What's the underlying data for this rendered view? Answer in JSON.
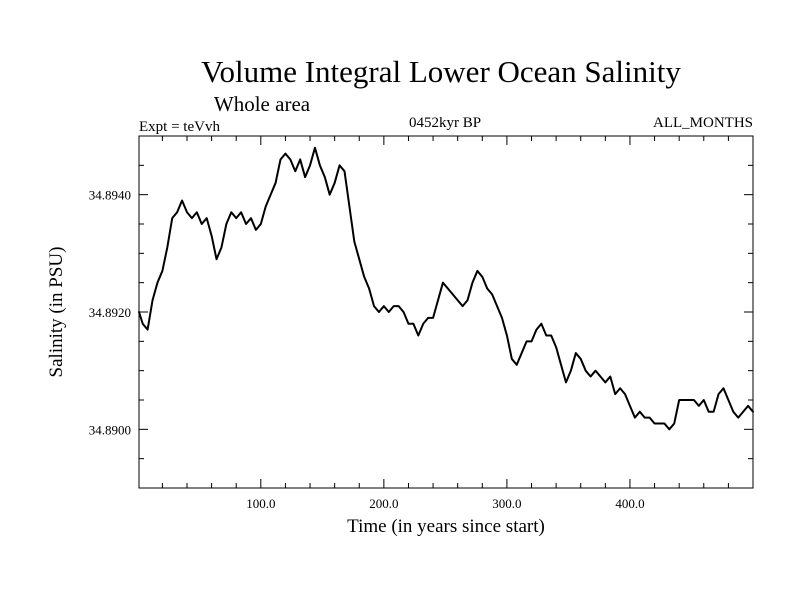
{
  "chart_data": {
    "type": "line",
    "title": "Volume Integral Lower Ocean Salinity",
    "subtitle": "Whole area",
    "experiment_label": "Expt = teVvh",
    "period_label": "0452kyr BP",
    "months_label": "ALL_MONTHS",
    "xlabel": "Time (in years since start)",
    "ylabel": "Salinity (in PSU)",
    "xlim": [
      1,
      500
    ],
    "ylim": [
      34.889,
      34.895
    ],
    "x_major_ticks": [
      100,
      200,
      300,
      400
    ],
    "x_tick_labels": [
      "100.0",
      "200.0",
      "300.0",
      "400.0"
    ],
    "x_minor_step": 20,
    "y_major_ticks": [
      34.89,
      34.892,
      34.894
    ],
    "y_tick_labels": [
      "34.8900",
      "34.8920",
      "34.8940"
    ],
    "y_minor_step": 0.0005,
    "grid": false,
    "series": [
      {
        "x": [
          1,
          4,
          8,
          12,
          16,
          20,
          24,
          28,
          32,
          36,
          40,
          44,
          48,
          52,
          56,
          60,
          64,
          68,
          72,
          76,
          80,
          84,
          88,
          92,
          96,
          100,
          104,
          108,
          112,
          116,
          120,
          124,
          128,
          132,
          136,
          140,
          144,
          148,
          152,
          156,
          160,
          164,
          168,
          172,
          176,
          180,
          184,
          188,
          192,
          196,
          200,
          204,
          208,
          212,
          216,
          220,
          224,
          228,
          232,
          236,
          240,
          244,
          248,
          252,
          256,
          260,
          264,
          268,
          272,
          276,
          280,
          284,
          288,
          292,
          296,
          300,
          304,
          308,
          312,
          316,
          320,
          324,
          328,
          332,
          336,
          340,
          344,
          348,
          352,
          356,
          360,
          364,
          368,
          372,
          376,
          380,
          384,
          388,
          392,
          396,
          400,
          404,
          408,
          412,
          416,
          420,
          424,
          428,
          432,
          436,
          440,
          444,
          448,
          452,
          456,
          460,
          464,
          468,
          472,
          476,
          480,
          484,
          488,
          492,
          496,
          500
        ],
        "values": [
          34.892,
          34.8918,
          34.8917,
          34.8922,
          34.8925,
          34.8927,
          34.8931,
          34.8936,
          34.8937,
          34.8939,
          34.8937,
          34.8936,
          34.8937,
          34.8935,
          34.8936,
          34.8933,
          34.8929,
          34.8931,
          34.8935,
          34.8937,
          34.8936,
          34.8937,
          34.8935,
          34.8936,
          34.8934,
          34.8935,
          34.8938,
          34.894,
          34.8942,
          34.8946,
          34.8947,
          34.8946,
          34.8944,
          34.8946,
          34.8943,
          34.8945,
          34.8948,
          34.8945,
          34.8943,
          34.894,
          34.8942,
          34.8945,
          34.8944,
          34.8938,
          34.8932,
          34.8929,
          34.8926,
          34.8924,
          34.8921,
          34.892,
          34.8921,
          34.892,
          34.8921,
          34.8921,
          34.892,
          34.8918,
          34.8918,
          34.8916,
          34.8918,
          34.8919,
          34.8919,
          34.8922,
          34.8925,
          34.8924,
          34.8923,
          34.8922,
          34.8921,
          34.8922,
          34.8925,
          34.8927,
          34.8926,
          34.8924,
          34.8923,
          34.8921,
          34.8919,
          34.8916,
          34.8912,
          34.8911,
          34.8913,
          34.8915,
          34.8915,
          34.8917,
          34.8918,
          34.8916,
          34.8916,
          34.8914,
          34.8911,
          34.8908,
          34.891,
          34.8913,
          34.8912,
          34.891,
          34.8909,
          34.891,
          34.8909,
          34.8908,
          34.8909,
          34.8906,
          34.8907,
          34.8906,
          34.8904,
          34.8902,
          34.8903,
          34.8902,
          34.8902,
          34.8901,
          34.8901,
          34.8901,
          34.89,
          34.8901,
          34.8905,
          34.8905,
          34.8905,
          34.8905,
          34.8904,
          34.8905,
          34.8903,
          34.8903,
          34.8906,
          34.8907,
          34.8905,
          34.8903,
          34.8902,
          34.8903,
          34.8904,
          34.8903
        ]
      }
    ]
  }
}
